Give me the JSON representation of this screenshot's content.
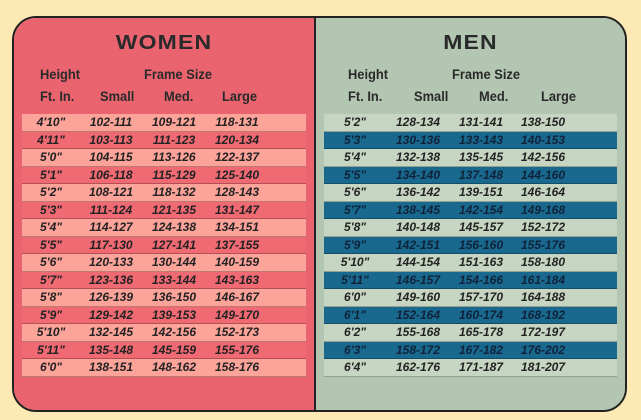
{
  "women": {
    "title": "WOMEN",
    "header": {
      "height_top": "Height",
      "height_bottom": "Ft. In.",
      "frame_size": "Frame Size",
      "small": "Small",
      "med": "Med.",
      "large": "Large"
    },
    "rows": [
      {
        "height": "4'10\"",
        "small": "102-111",
        "med": "109-121",
        "large": "118-131"
      },
      {
        "height": "4'11\"",
        "small": "103-113",
        "med": "111-123",
        "large": "120-134"
      },
      {
        "height": "5'0\"",
        "small": "104-115",
        "med": "113-126",
        "large": "122-137"
      },
      {
        "height": "5'1\"",
        "small": "106-118",
        "med": "115-129",
        "large": "125-140"
      },
      {
        "height": "5'2\"",
        "small": "108-121",
        "med": "118-132",
        "large": "128-143"
      },
      {
        "height": "5'3\"",
        "small": "111-124",
        "med": "121-135",
        "large": "131-147"
      },
      {
        "height": "5'4\"",
        "small": "114-127",
        "med": "124-138",
        "large": "134-151"
      },
      {
        "height": "5'5\"",
        "small": "117-130",
        "med": "127-141",
        "large": "137-155"
      },
      {
        "height": "5'6\"",
        "small": "120-133",
        "med": "130-144",
        "large": "140-159"
      },
      {
        "height": "5'7\"",
        "small": "123-136",
        "med": "133-144",
        "large": "143-163"
      },
      {
        "height": "5'8\"",
        "small": "126-139",
        "med": "136-150",
        "large": "146-167"
      },
      {
        "height": "5'9\"",
        "small": "129-142",
        "med": "139-153",
        "large": "149-170"
      },
      {
        "height": "5'10\"",
        "small": "132-145",
        "med": "142-156",
        "large": "152-173"
      },
      {
        "height": "5'11\"",
        "small": "135-148",
        "med": "145-159",
        "large": "155-176"
      },
      {
        "height": "6'0\"",
        "small": "138-151",
        "med": "148-162",
        "large": "158-176"
      }
    ]
  },
  "men": {
    "title": "MEN",
    "header": {
      "height_top": "Height",
      "height_bottom": "Ft. In.",
      "frame_size": "Frame Size",
      "small": "Small",
      "med": "Med.",
      "large": "Large"
    },
    "rows": [
      {
        "height": "5'2\"",
        "small": "128-134",
        "med": "131-141",
        "large": "138-150"
      },
      {
        "height": "5'3\"",
        "small": "130-136",
        "med": "133-143",
        "large": "140-153"
      },
      {
        "height": "5'4\"",
        "small": "132-138",
        "med": "135-145",
        "large": "142-156"
      },
      {
        "height": "5'5\"",
        "small": "134-140",
        "med": "137-148",
        "large": "144-160"
      },
      {
        "height": "5'6\"",
        "small": "136-142",
        "med": "139-151",
        "large": "146-164"
      },
      {
        "height": "5'7\"",
        "small": "138-145",
        "med": "142-154",
        "large": "149-168"
      },
      {
        "height": "5'8\"",
        "small": "140-148",
        "med": "145-157",
        "large": "152-172"
      },
      {
        "height": "5'9\"",
        "small": "142-151",
        "med": "156-160",
        "large": "155-176"
      },
      {
        "height": "5'10\"",
        "small": "144-154",
        "med": "151-163",
        "large": "158-180"
      },
      {
        "height": "5'11\"",
        "small": "146-157",
        "med": "154-166",
        "large": "161-184"
      },
      {
        "height": "6'0\"",
        "small": "149-160",
        "med": "157-170",
        "large": "164-188"
      },
      {
        "height": "6'1\"",
        "small": "152-164",
        "med": "160-174",
        "large": "168-192"
      },
      {
        "height": "6'2\"",
        "small": "155-168",
        "med": "165-178",
        "large": "172-197"
      },
      {
        "height": "6'3\"",
        "small": "158-172",
        "med": "167-182",
        "large": "176-202"
      },
      {
        "height": "6'4\"",
        "small": "162-176",
        "med": "171-187",
        "large": "181-207"
      }
    ]
  },
  "colors": {
    "page_background": "#fde9b3",
    "women_panel": "#ea6470",
    "women_row_light": "#fca39a",
    "women_row_dark": "#f06a73",
    "men_panel": "#b3c6b2",
    "men_row_light": "#c7d6c2",
    "men_row_dark": "#19698e"
  }
}
